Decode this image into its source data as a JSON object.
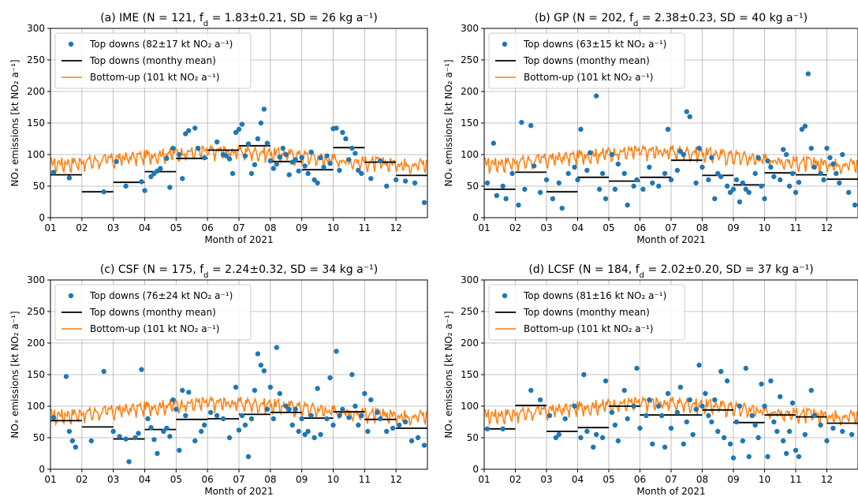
{
  "figure": {
    "colors": {
      "scatter": "#1f77b4",
      "mean": "#000000",
      "bottomup": "#ff7f0e",
      "grid": "#b0b0b0"
    },
    "x_ticks": [
      "01",
      "02",
      "03",
      "04",
      "05",
      "06",
      "07",
      "08",
      "09",
      "10",
      "11",
      "12"
    ],
    "y_ticks": [
      "0",
      "50",
      "100",
      "150",
      "200",
      "250",
      "300"
    ],
    "xlabel": "Month of 2021",
    "ylabel": "NOₓ emissions [kt NO₂ a⁻¹]"
  },
  "chart_data": [
    {
      "type": "scatter",
      "title": "(a) IME (N = 121, f_d = 1.83±0.21, SD = 26 kg a⁻¹)",
      "title_parts": {
        "pre": "(a) IME (N = 121, f",
        "sub": "d",
        "post": " = 1.83±0.21, SD = 26 kg a⁻¹)"
      },
      "xlabel": "Month of 2021",
      "ylabel": "NOₓ emissions [kt NO₂ a⁻¹]",
      "xlim": [
        1,
        13
      ],
      "ylim": [
        0,
        300
      ],
      "grid": true,
      "legend_loc": "upper-left",
      "legend": [
        "Top downs (82±17 kt NO₂ a⁻¹)",
        "Top downs (monthy mean)",
        "Bottom-up (101 kt NO₂ a⁻¹)"
      ],
      "monthly_mean": [
        68,
        41,
        56,
        73,
        94,
        107,
        114,
        89,
        76,
        111,
        88,
        67
      ],
      "scatter": {
        "x": [
          1.1,
          1.6,
          2.7,
          3.1,
          3.4,
          3.9,
          4.0,
          4.2,
          4.3,
          4.4,
          4.5,
          4.7,
          4.8,
          4.9,
          5.1,
          5.2,
          5.3,
          5.4,
          5.6,
          5.7,
          5.9,
          6.3,
          6.5,
          6.6,
          6.7,
          6.8,
          6.9,
          7.0,
          7.1,
          7.2,
          7.3,
          7.4,
          7.5,
          7.6,
          7.7,
          7.8,
          7.9,
          8.0,
          8.1,
          8.2,
          8.3,
          8.4,
          8.5,
          8.6,
          8.7,
          8.8,
          8.9,
          9.0,
          9.1,
          9.2,
          9.3,
          9.4,
          9.5,
          9.6,
          9.7,
          9.8,
          9.9,
          10.0,
          10.1,
          10.2,
          10.3,
          10.4,
          10.5,
          10.6,
          10.7,
          10.8,
          10.9,
          11.2,
          11.5,
          11.7,
          12.0,
          12.3,
          12.6,
          12.9
        ],
        "y": [
          72,
          63,
          41,
          89,
          50,
          57,
          43,
          65,
          70,
          74,
          78,
          94,
          48,
          110,
          100,
          62,
          133,
          138,
          142,
          110,
          95,
          120,
          100,
          98,
          93,
          70,
          135,
          140,
          148,
          98,
          117,
          70,
          84,
          125,
          150,
          172,
          118,
          90,
          78,
          85,
          96,
          110,
          100,
          68,
          88,
          92,
          74,
          95,
          82,
          70,
          104,
          60,
          55,
          95,
          80,
          98,
          86,
          141,
          142,
          75,
          135,
          125,
          92,
          110,
          102,
          75,
          70,
          62,
          90,
          50,
          60,
          58,
          55,
          24
        ]
      },
      "bottom_up_baseline": 101
    },
    {
      "type": "scatter",
      "title": "(b) GP (N = 202, f_d = 2.38±0.23, SD = 40 kg a⁻¹)",
      "title_parts": {
        "pre": "(b) GP (N = 202, f",
        "sub": "d",
        "post": " = 2.38±0.23, SD = 40 kg a⁻¹)"
      },
      "xlabel": "Month of 2021",
      "ylabel": "NOₓ emissions [kt NO₂ a⁻¹]",
      "xlim": [
        1,
        13
      ],
      "ylim": [
        0,
        300
      ],
      "grid": true,
      "legend_loc": "upper-left",
      "legend": [
        "Top downs (63±15 kt NO₂ a⁻¹)",
        "Top downs (monthy mean)",
        "Bottom-up (101 kt NO₂ a⁻¹)"
      ],
      "monthly_mean": [
        45,
        72,
        41,
        64,
        58,
        64,
        91,
        67,
        52,
        71,
        68,
        61
      ],
      "scatter": {
        "x": [
          1.1,
          1.3,
          1.4,
          1.6,
          1.7,
          1.9,
          2.1,
          2.2,
          2.3,
          2.5,
          2.6,
          2.8,
          3.0,
          3.2,
          3.4,
          3.5,
          3.7,
          3.9,
          4.0,
          4.1,
          4.3,
          4.4,
          4.6,
          4.7,
          4.8,
          4.9,
          5.1,
          5.2,
          5.3,
          5.5,
          5.6,
          5.8,
          5.9,
          6.1,
          6.3,
          6.4,
          6.6,
          6.8,
          6.9,
          7.0,
          7.2,
          7.3,
          7.4,
          7.5,
          7.6,
          7.8,
          7.9,
          8.0,
          8.2,
          8.3,
          8.4,
          8.5,
          8.6,
          8.8,
          8.9,
          9.0,
          9.1,
          9.2,
          9.3,
          9.4,
          9.5,
          9.7,
          9.8,
          9.9,
          10.0,
          10.1,
          10.2,
          10.3,
          10.5,
          10.6,
          10.7,
          10.8,
          10.9,
          11.0,
          11.1,
          11.2,
          11.3,
          11.4,
          11.5,
          11.6,
          11.8,
          11.9,
          12.0,
          12.1,
          12.2,
          12.3,
          12.4,
          12.5,
          12.7,
          12.9
        ],
        "y": [
          55,
          118,
          35,
          50,
          30,
          70,
          20,
          151,
          45,
          146,
          82,
          40,
          60,
          30,
          55,
          15,
          70,
          80,
          60,
          140,
          75,
          103,
          193,
          45,
          70,
          30,
          100,
          45,
          85,
          70,
          20,
          50,
          60,
          45,
          80,
          55,
          50,
          70,
          140,
          60,
          75,
          105,
          100,
          168,
          160,
          55,
          110,
          80,
          60,
          95,
          30,
          70,
          65,
          50,
          40,
          45,
          60,
          25,
          55,
          45,
          40,
          70,
          95,
          50,
          30,
          90,
          80,
          65,
          60,
          108,
          100,
          50,
          70,
          40,
          56,
          140,
          145,
          228,
          110,
          80,
          70,
          60,
          110,
          95,
          85,
          70,
          55,
          100,
          40,
          20
        ]
      },
      "bottom_up_baseline": 101
    },
    {
      "type": "scatter",
      "title": "(c) CSF (N = 175, f_d = 2.24±0.32, SD = 34 kg a⁻¹)",
      "title_parts": {
        "pre": "(c) CSF (N = 175, f",
        "sub": "d",
        "post": " = 2.24±0.32, SD = 34 kg a⁻¹)"
      },
      "xlabel": "Month of 2021",
      "ylabel": "NOₓ emissions [kt NO₂ a⁻¹]",
      "xlim": [
        1,
        13
      ],
      "ylim": [
        0,
        300
      ],
      "grid": true,
      "legend_loc": "upper-left",
      "legend": [
        "Top downs (76±24 kt NO₂ a⁻¹)",
        "Top downs (monthy mean)",
        "Bottom-up (101 kt NO₂ a⁻¹)"
      ],
      "monthly_mean": [
        77,
        67,
        48,
        63,
        79,
        80,
        87,
        90,
        81,
        91,
        79,
        65
      ],
      "scatter": {
        "x": [
          1.1,
          1.5,
          1.6,
          1.7,
          1.8,
          2.3,
          2.7,
          3.0,
          3.2,
          3.4,
          3.5,
          3.7,
          3.8,
          3.9,
          4.1,
          4.2,
          4.3,
          4.4,
          4.6,
          4.7,
          4.8,
          4.9,
          5.0,
          5.1,
          5.2,
          5.3,
          5.4,
          5.6,
          5.8,
          5.9,
          6.1,
          6.3,
          6.5,
          6.7,
          6.9,
          7.0,
          7.1,
          7.2,
          7.3,
          7.4,
          7.5,
          7.6,
          7.7,
          7.8,
          7.9,
          8.0,
          8.1,
          8.2,
          8.3,
          8.5,
          8.6,
          8.7,
          8.8,
          8.9,
          9.0,
          9.1,
          9.2,
          9.3,
          9.4,
          9.5,
          9.6,
          9.8,
          9.9,
          10.0,
          10.1,
          10.2,
          10.3,
          10.5,
          10.6,
          10.7,
          10.8,
          10.9,
          11.0,
          11.1,
          11.2,
          11.4,
          11.5,
          11.7,
          11.9,
          12.1,
          12.3,
          12.5,
          12.7,
          12.9
        ],
        "y": [
          82,
          147,
          60,
          45,
          35,
          45,
          155,
          60,
          52,
          48,
          12,
          50,
          57,
          158,
          80,
          66,
          47,
          25,
          60,
          65,
          52,
          110,
          95,
          30,
          125,
          85,
          122,
          45,
          60,
          70,
          90,
          85,
          80,
          50,
          130,
          62,
          85,
          70,
          20,
          80,
          125,
          183,
          165,
          156,
          95,
          130,
          80,
          193,
          120,
          100,
          95,
          70,
          95,
          60,
          80,
          55,
          60,
          85,
          50,
          128,
          55,
          80,
          145,
          70,
          187,
          85,
          95,
          82,
          150,
          100,
          70,
          85,
          120,
          60,
          110,
          90,
          80,
          60,
          65,
          70,
          75,
          45,
          50,
          38
        ]
      },
      "bottom_up_baseline": 101
    },
    {
      "type": "scatter",
      "title": "(d) LCSF (N = 184, f_d = 2.02±0.20, SD = 37 kg a⁻¹)",
      "title_parts": {
        "pre": "(d) LCSF (N = 184, f",
        "sub": "d",
        "post": " = 2.02±0.20, SD = 37 kg a⁻¹)"
      },
      "xlabel": "Month of 2021",
      "ylabel": "NOₓ emissions [kt NO₂ a⁻¹]",
      "xlim": [
        1,
        13
      ],
      "ylim": [
        0,
        300
      ],
      "grid": true,
      "legend_loc": "upper-left",
      "legend": [
        "Top downs (81±16 kt NO₂ a⁻¹)",
        "Top downs (monthy mean)",
        "Bottom-up (101 kt NO₂ a⁻¹)"
      ],
      "monthly_mean": [
        64,
        101,
        60,
        66,
        100,
        86,
        86,
        94,
        74,
        86,
        83,
        73
      ],
      "scatter": {
        "x": [
          1.1,
          1.6,
          2.5,
          2.8,
          3.1,
          3.3,
          3.4,
          3.6,
          3.9,
          4.1,
          4.2,
          4.3,
          4.5,
          4.6,
          4.8,
          4.9,
          5.1,
          5.2,
          5.3,
          5.5,
          5.6,
          5.8,
          5.9,
          6.0,
          6.2,
          6.3,
          6.4,
          6.6,
          6.7,
          6.8,
          6.9,
          7.0,
          7.2,
          7.3,
          7.4,
          7.5,
          7.6,
          7.7,
          7.8,
          7.9,
          8.0,
          8.1,
          8.2,
          8.3,
          8.4,
          8.5,
          8.6,
          8.7,
          8.8,
          8.9,
          9.0,
          9.1,
          9.2,
          9.3,
          9.4,
          9.5,
          9.6,
          9.7,
          9.8,
          9.9,
          10.0,
          10.1,
          10.2,
          10.3,
          10.4,
          10.5,
          10.6,
          10.7,
          10.8,
          10.9,
          11.0,
          11.1,
          11.3,
          11.5,
          11.6,
          11.8,
          12.0,
          12.2,
          12.5,
          12.8
        ],
        "y": [
          64,
          64,
          125,
          110,
          85,
          50,
          55,
          80,
          100,
          50,
          150,
          60,
          35,
          55,
          50,
          140,
          90,
          70,
          45,
          125,
          80,
          100,
          160,
          65,
          85,
          110,
          40,
          100,
          85,
          35,
          120,
          65,
          90,
          130,
          40,
          75,
          110,
          55,
          95,
          165,
          100,
          120,
          85,
          75,
          110,
          60,
          155,
          50,
          140,
          40,
          18,
          75,
          100,
          45,
          160,
          20,
          85,
          70,
          50,
          135,
          100,
          20,
          140,
          75,
          60,
          115,
          45,
          25,
          60,
          105,
          30,
          20,
          55,
          125,
          85,
          70,
          45,
          65,
          60,
          55
        ]
      },
      "bottom_up_baseline": 101
    }
  ]
}
